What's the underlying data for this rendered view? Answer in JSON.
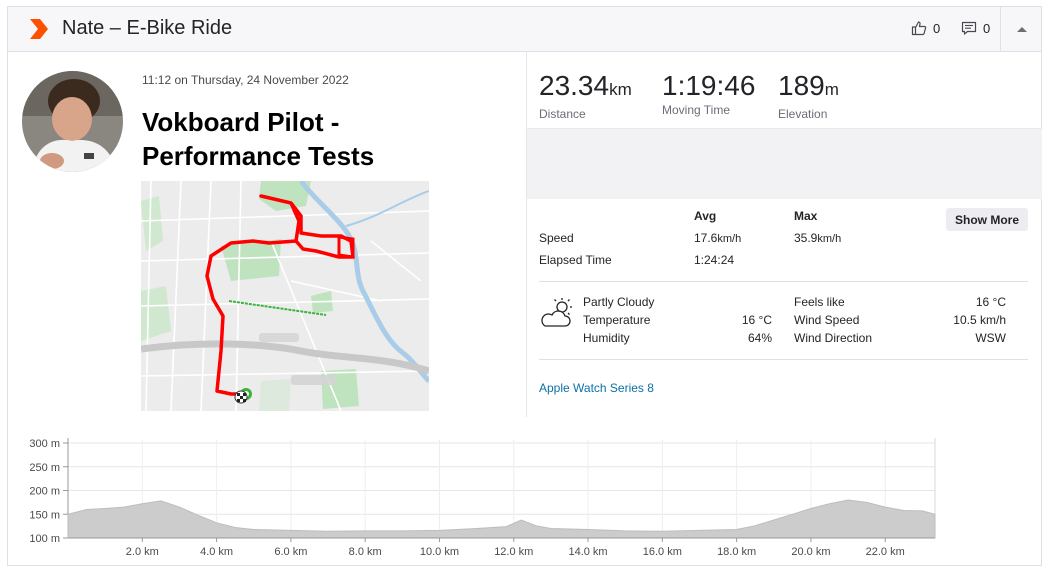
{
  "header": {
    "title": "Nate – E-Bike Ride",
    "kudos_count": "0",
    "comment_count": "0"
  },
  "activity": {
    "timestamp": "11:12 on Thursday, 24 November 2022",
    "name": "Vokboard Pilot - Performance Tests"
  },
  "stats": {
    "distance": {
      "value": "23.34",
      "unit": "km",
      "label": "Distance"
    },
    "moving_time": {
      "value": "1:19:46",
      "label": "Moving Time"
    },
    "elevation": {
      "value": "189",
      "unit": "m",
      "label": "Elevation"
    }
  },
  "details": {
    "col_avg": "Avg",
    "col_max": "Max",
    "show_more": "Show More",
    "speed_label": "Speed",
    "speed_avg": "17.6",
    "speed_avg_unit": "km/h",
    "speed_max": "35.9",
    "speed_max_unit": "km/h",
    "elapsed_label": "Elapsed Time",
    "elapsed_value": "1:24:24"
  },
  "weather": {
    "condition": "Partly Cloudy",
    "temperature_label": "Temperature",
    "temperature_value": "16 °C",
    "humidity_label": "Humidity",
    "humidity_value": "64%",
    "feels_like_label": "Feels like",
    "feels_like_value": "16 °C",
    "wind_speed_label": "Wind Speed",
    "wind_speed_value": "10.5 km/h",
    "wind_direction_label": "Wind Direction",
    "wind_direction_value": "WSW"
  },
  "device": "Apple Watch Series 8",
  "colors": {
    "brand": "#fc5200",
    "route": "#ff0000",
    "link": "#0c70a8",
    "elevation_fill": "#cccccc"
  },
  "icons": [
    "strava-chevron-icon",
    "thumbs-up-icon",
    "comment-icon",
    "caret-up-icon",
    "partly-cloudy-icon",
    "finish-flag-icon"
  ],
  "chart_data": {
    "type": "area",
    "title": "",
    "xlabel": "",
    "ylabel": "",
    "y_ticks": [
      "100 m",
      "150 m",
      "200 m",
      "250 m",
      "300 m"
    ],
    "x_ticks": [
      "2.0 km",
      "4.0 km",
      "6.0 km",
      "8.0 km",
      "10.0 km",
      "12.0 km",
      "14.0 km",
      "16.0 km",
      "18.0 km",
      "20.0 km",
      "22.0 km"
    ],
    "xlim": [
      0,
      23.34
    ],
    "ylim": [
      100,
      300
    ],
    "grid": true,
    "x": [
      0,
      0.5,
      1.0,
      1.5,
      2.0,
      2.5,
      3.0,
      3.5,
      4.0,
      4.5,
      5.0,
      6.0,
      7.0,
      8.0,
      9.0,
      10.0,
      11.0,
      11.8,
      12.2,
      12.6,
      13.0,
      14.0,
      15.0,
      16.0,
      17.0,
      18.0,
      18.5,
      19.0,
      19.5,
      20.0,
      20.5,
      21.0,
      21.5,
      22.0,
      22.5,
      23.0,
      23.34
    ],
    "series": [
      {
        "values": [
          150,
          160,
          162,
          165,
          172,
          178,
          165,
          148,
          132,
          122,
          118,
          116,
          114,
          115,
          115,
          116,
          120,
          124,
          138,
          126,
          120,
          118,
          115,
          114,
          116,
          118,
          126,
          138,
          150,
          162,
          172,
          180,
          175,
          165,
          158,
          157,
          150
        ]
      }
    ]
  }
}
